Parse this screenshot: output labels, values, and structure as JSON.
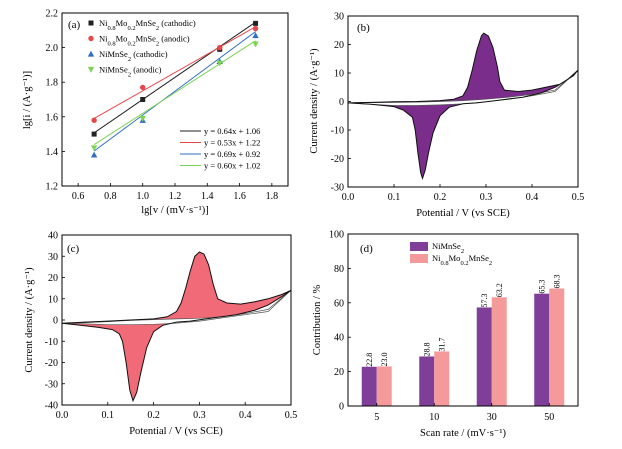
{
  "colors": {
    "black": "#222222",
    "red": "#e8474a",
    "blue": "#2f6fc6",
    "green": "#7dd353",
    "purple": "#7b2d8c",
    "pink": "#f06a78",
    "bar_purple": "#7f3f98",
    "bar_pink": "#f59a9a"
  },
  "chart_data": [
    {
      "type": "scatter",
      "panel": "(a)",
      "xlabel": "lg[v / (mV·s⁻¹)]",
      "ylabel": "lg[i / (A·g⁻¹)]",
      "xlim": [
        0.5,
        1.9
      ],
      "ylim": [
        1.2,
        2.2
      ],
      "xticks": [
        "0.6",
        "0.8",
        "1.0",
        "1.2",
        "1.4",
        "1.6",
        "1.8"
      ],
      "yticks": [
        "1.2",
        "1.4",
        "1.6",
        "1.8",
        "2.0",
        "2.2"
      ],
      "series": [
        {
          "name": "Ni0.8Mo0.2MnSe2 (cathodic)",
          "marker": "square",
          "color": "#222222",
          "x": [
            0.699,
            1.0,
            1.477,
            1.699
          ],
          "y": [
            1.5,
            1.7,
            1.99,
            2.14
          ],
          "fit": [
            0.64,
            1.06
          ]
        },
        {
          "name": "Ni0.8Mo0.2MnSe2 (anodic)",
          "marker": "circle",
          "color": "#e8474a",
          "x": [
            0.699,
            1.0,
            1.477,
            1.699
          ],
          "y": [
            1.58,
            1.77,
            2.0,
            2.11
          ],
          "fit": [
            0.53,
            1.22
          ]
        },
        {
          "name": "NiMnSe2 (cathodic)",
          "marker": "triangle-up",
          "color": "#2f6fc6",
          "x": [
            0.699,
            1.0,
            1.477,
            1.699
          ],
          "y": [
            1.38,
            1.58,
            1.92,
            2.07
          ],
          "fit": [
            0.69,
            0.92
          ]
        },
        {
          "name": "NiMnSe2 (anodic)",
          "marker": "triangle-down",
          "color": "#7dd353",
          "x": [
            0.699,
            1.0,
            1.477,
            1.699
          ],
          "y": [
            1.42,
            1.59,
            1.91,
            2.02
          ],
          "fit": [
            0.6,
            1.02
          ]
        }
      ],
      "legend_main": [
        {
          "base": "Ni",
          "sub1": "0.8",
          "mid": "Mo",
          "sub2": "0.2",
          "tail": "MnSe",
          "sub3": "2",
          "suffix": " (cathodic)"
        },
        {
          "base": "Ni",
          "sub1": "0.8",
          "mid": "Mo",
          "sub2": "0.2",
          "tail": "MnSe",
          "sub3": "2",
          "suffix": " (anodic)"
        },
        {
          "base": "NiMnSe",
          "sub1": "2",
          "mid": "",
          "sub2": "",
          "tail": "",
          "sub3": "",
          "suffix": " (cathodic)"
        },
        {
          "base": "NiMnSe",
          "sub1": "2",
          "mid": "",
          "sub2": "",
          "tail": "",
          "sub3": "",
          "suffix": " (anodic)"
        }
      ],
      "fit_equations": [
        "y = 0.64x + 1.06",
        "y = 0.53x + 1.22",
        "y = 0.69x + 0.92",
        "y = 0.60x + 1.02"
      ]
    },
    {
      "type": "line",
      "panel": "(b)",
      "xlabel": "Potential / V (vs SCE)",
      "ylabel": "Current density / (A·g⁻¹)",
      "xlim": [
        0.0,
        0.5
      ],
      "ylim": [
        -30,
        30
      ],
      "xticks": [
        "0.0",
        "0.1",
        "0.2",
        "0.3",
        "0.4",
        "0.5"
      ],
      "yticks": [
        "-30",
        "-20",
        "-10",
        "0",
        "10",
        "20",
        "30"
      ],
      "cv_upper": [
        [
          0.0,
          -0.5
        ],
        [
          0.05,
          -0.3
        ],
        [
          0.1,
          -0.1
        ],
        [
          0.15,
          0.0
        ],
        [
          0.2,
          0.3
        ],
        [
          0.23,
          0.8
        ],
        [
          0.25,
          2.0
        ],
        [
          0.26,
          5.0
        ],
        [
          0.27,
          11.0
        ],
        [
          0.28,
          18.0
        ],
        [
          0.29,
          23.0
        ],
        [
          0.295,
          24.0
        ],
        [
          0.305,
          23.0
        ],
        [
          0.315,
          19.0
        ],
        [
          0.325,
          12.0
        ],
        [
          0.33,
          7.0
        ],
        [
          0.34,
          4.0
        ],
        [
          0.37,
          3.5
        ],
        [
          0.4,
          4.0
        ],
        [
          0.43,
          5.0
        ],
        [
          0.46,
          6.0
        ],
        [
          0.49,
          9.0
        ],
        [
          0.5,
          11.0
        ]
      ],
      "cv_lower": [
        [
          0.5,
          11.0
        ],
        [
          0.48,
          8.0
        ],
        [
          0.45,
          5.0
        ],
        [
          0.42,
          3.0
        ],
        [
          0.38,
          1.5
        ],
        [
          0.33,
          0.5
        ],
        [
          0.28,
          -0.5
        ],
        [
          0.25,
          -0.8
        ],
        [
          0.22,
          -2.0
        ],
        [
          0.2,
          -5.0
        ],
        [
          0.185,
          -11.0
        ],
        [
          0.175,
          -18.0
        ],
        [
          0.168,
          -24.0
        ],
        [
          0.162,
          -27.0
        ],
        [
          0.158,
          -25.0
        ],
        [
          0.152,
          -18.0
        ],
        [
          0.146,
          -10.0
        ],
        [
          0.14,
          -5.5
        ],
        [
          0.12,
          -3.0
        ],
        [
          0.1,
          -1.8
        ],
        [
          0.05,
          -1.0
        ],
        [
          0.0,
          -0.5
        ]
      ],
      "capacitive_upper": [
        [
          0.0,
          -0.5
        ],
        [
          0.05,
          -0.4
        ],
        [
          0.1,
          -0.3
        ],
        [
          0.15,
          -0.2
        ],
        [
          0.2,
          0.0
        ],
        [
          0.25,
          0.3
        ],
        [
          0.3,
          0.8
        ],
        [
          0.35,
          1.5
        ],
        [
          0.4,
          2.5
        ],
        [
          0.45,
          4.0
        ],
        [
          0.5,
          11.0
        ]
      ],
      "capacitive_lower": [
        [
          0.5,
          11.0
        ],
        [
          0.45,
          3.5
        ],
        [
          0.4,
          2.0
        ],
        [
          0.35,
          0.8
        ],
        [
          0.3,
          -0.1
        ],
        [
          0.25,
          -0.8
        ],
        [
          0.2,
          -1.2
        ],
        [
          0.15,
          -1.4
        ],
        [
          0.1,
          -1.4
        ],
        [
          0.05,
          -1.0
        ],
        [
          0.0,
          -0.5
        ]
      ]
    },
    {
      "type": "line",
      "panel": "(c)",
      "xlabel": "Potential / V (vs SCE)",
      "ylabel": "Current density / (A·g⁻¹)",
      "xlim": [
        0.0,
        0.5
      ],
      "ylim": [
        -40,
        40
      ],
      "xticks": [
        "0.0",
        "0.1",
        "0.2",
        "0.3",
        "0.4",
        "0.5"
      ],
      "yticks": [
        "-40",
        "-30",
        "-20",
        "-10",
        "0",
        "10",
        "20",
        "30",
        "40"
      ],
      "cv_upper": [
        [
          0.0,
          -1.5
        ],
        [
          0.05,
          -1.0
        ],
        [
          0.1,
          -0.5
        ],
        [
          0.15,
          0.0
        ],
        [
          0.2,
          0.5
        ],
        [
          0.23,
          1.5
        ],
        [
          0.25,
          4.0
        ],
        [
          0.26,
          8.0
        ],
        [
          0.27,
          15.0
        ],
        [
          0.28,
          23.0
        ],
        [
          0.29,
          30.0
        ],
        [
          0.3,
          32.0
        ],
        [
          0.31,
          31.0
        ],
        [
          0.32,
          26.0
        ],
        [
          0.33,
          17.0
        ],
        [
          0.34,
          10.0
        ],
        [
          0.36,
          8.0
        ],
        [
          0.39,
          7.5
        ],
        [
          0.42,
          8.5
        ],
        [
          0.45,
          10.0
        ],
        [
          0.48,
          12.0
        ],
        [
          0.5,
          14.0
        ]
      ],
      "cv_lower": [
        [
          0.5,
          14.0
        ],
        [
          0.48,
          11.0
        ],
        [
          0.45,
          7.0
        ],
        [
          0.42,
          4.5
        ],
        [
          0.38,
          2.5
        ],
        [
          0.33,
          1.0
        ],
        [
          0.28,
          -0.5
        ],
        [
          0.25,
          -1.0
        ],
        [
          0.22,
          -2.5
        ],
        [
          0.2,
          -5.5
        ],
        [
          0.185,
          -13.0
        ],
        [
          0.173,
          -24.0
        ],
        [
          0.163,
          -34.0
        ],
        [
          0.155,
          -38.0
        ],
        [
          0.148,
          -33.0
        ],
        [
          0.14,
          -20.0
        ],
        [
          0.132,
          -10.0
        ],
        [
          0.125,
          -6.5
        ],
        [
          0.11,
          -4.5
        ],
        [
          0.08,
          -3.5
        ],
        [
          0.04,
          -2.5
        ],
        [
          0.0,
          -1.5
        ]
      ],
      "capacitive_upper": [
        [
          0.0,
          -1.5
        ],
        [
          0.05,
          -1.2
        ],
        [
          0.1,
          -0.8
        ],
        [
          0.15,
          -0.2
        ],
        [
          0.2,
          0.2
        ],
        [
          0.25,
          0.5
        ],
        [
          0.3,
          0.8
        ],
        [
          0.35,
          1.5
        ],
        [
          0.4,
          3.0
        ],
        [
          0.45,
          5.0
        ],
        [
          0.5,
          14.0
        ]
      ],
      "capacitive_lower": [
        [
          0.5,
          14.0
        ],
        [
          0.45,
          4.0
        ],
        [
          0.4,
          2.5
        ],
        [
          0.35,
          1.0
        ],
        [
          0.3,
          -0.5
        ],
        [
          0.25,
          -1.5
        ],
        [
          0.2,
          -2.0
        ],
        [
          0.15,
          -2.2
        ],
        [
          0.1,
          -2.2
        ],
        [
          0.05,
          -1.8
        ],
        [
          0.0,
          -1.5
        ]
      ]
    },
    {
      "type": "bar",
      "panel": "(d)",
      "xlabel": "Scan rate / (mV·s⁻¹)",
      "ylabel": "Contribution / %",
      "ylim": [
        0,
        100
      ],
      "yticks": [
        "0",
        "20",
        "40",
        "60",
        "80",
        "100"
      ],
      "categories": [
        "5",
        "10",
        "30",
        "50"
      ],
      "series": [
        {
          "name": "NiMnSe2",
          "color": "#7f3f98",
          "values": [
            22.8,
            28.8,
            57.3,
            65.3
          ],
          "labels": [
            "22.8",
            "28.8",
            "57.3",
            "65.3"
          ]
        },
        {
          "name": "Ni0.8Mo0.2MnSe2",
          "color": "#f59a9a",
          "values": [
            23.0,
            31.7,
            63.2,
            68.3
          ],
          "labels": [
            "23.0",
            "31.7",
            "63.2",
            "68.3"
          ]
        }
      ],
      "legend": [
        {
          "base": "NiMnSe",
          "sub1": "2",
          "mid": "",
          "sub2": "",
          "tail": "",
          "sub3": ""
        },
        {
          "base": "Ni",
          "sub1": "0.8",
          "mid": "Mo",
          "sub2": "0.2",
          "tail": "MnSe",
          "sub3": "2"
        }
      ]
    }
  ]
}
